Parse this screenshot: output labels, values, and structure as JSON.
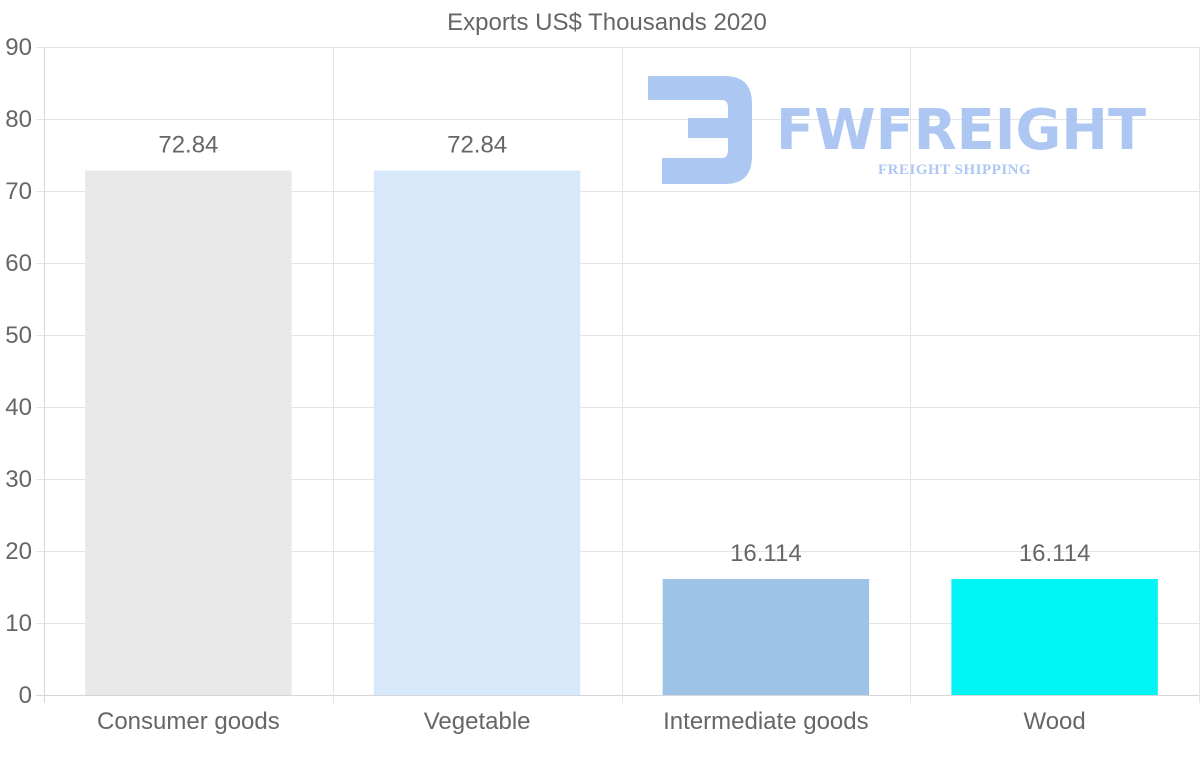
{
  "chart_data": {
    "type": "bar",
    "title": "Exports US$ Thousands 2020",
    "categories": [
      "Consumer goods",
      "Vegetable",
      "Intermediate goods",
      "Wood"
    ],
    "values": [
      72.84,
      72.84,
      16.114,
      16.114
    ],
    "value_labels": [
      "72.84",
      "72.84",
      "16.114",
      "16.114"
    ],
    "bar_colors": [
      "#e8e8e8",
      "#d6e8fa",
      "#9dc3e6",
      "#00f5f5"
    ],
    "ylim": [
      0,
      90
    ],
    "yticks": [
      0,
      10,
      20,
      30,
      40,
      50,
      60,
      70,
      80,
      90
    ],
    "xlabel": "",
    "ylabel": "",
    "grid": true
  },
  "watermark": {
    "name": "FWFREIGHT",
    "tagline": "FREIGHT SHIPPING",
    "color": "#a9c4f2"
  }
}
